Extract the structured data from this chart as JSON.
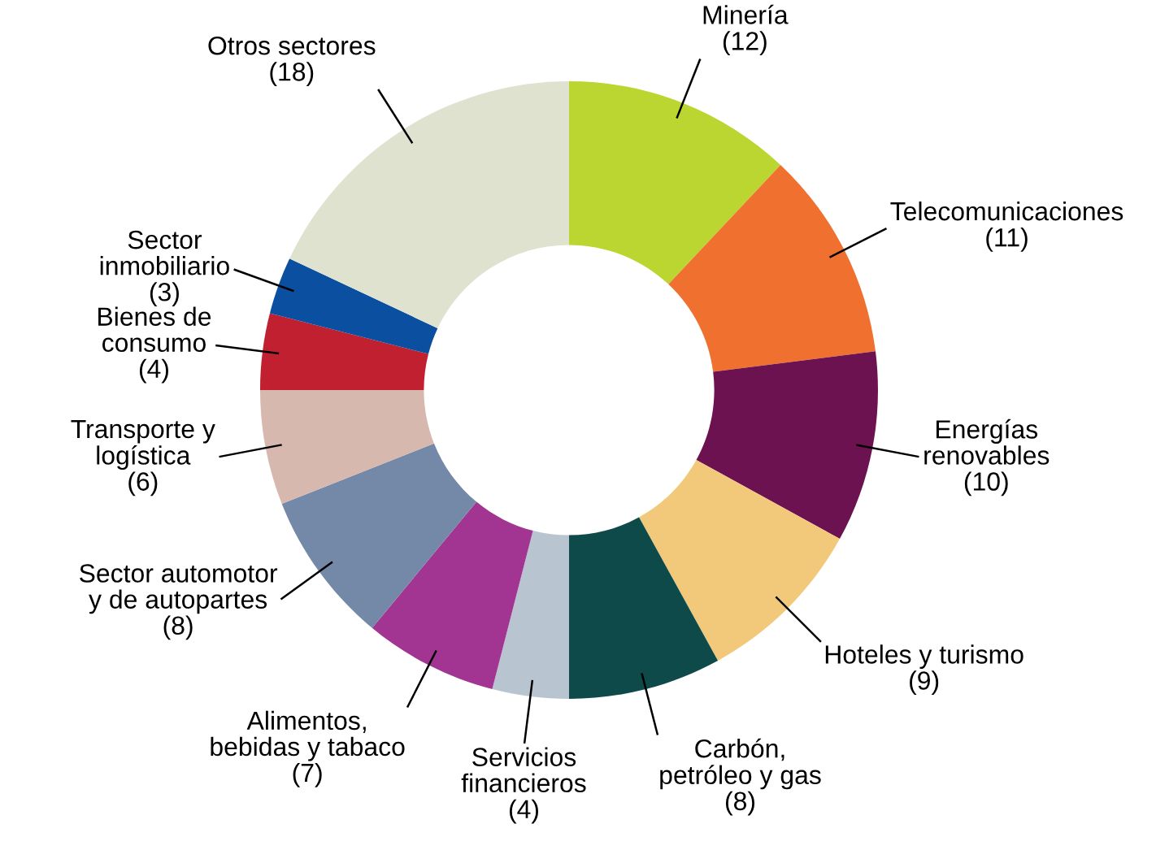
{
  "chart_data": {
    "type": "donut",
    "categories": [
      "Minería",
      "Telecomunicaciones",
      "Energías\nrenovables",
      "Hoteles y turismo",
      "Carbón,\npetróleo y gas",
      "Servicios\nfinancieros",
      "Alimentos,\nbebidas y tabaco",
      "Sector automotor\ny de autopartes",
      "Transporte y\nlogística",
      "Bienes de\nconsumo",
      "Sector\ninmobiliario",
      "Otros sectores"
    ],
    "values": [
      12,
      11,
      10,
      9,
      8,
      4,
      7,
      8,
      6,
      4,
      3,
      18
    ],
    "value_labels": [
      "(12)",
      "(11)",
      "(10)",
      "(9)",
      "(8)",
      "(4)",
      "(7)",
      "(8)",
      "(6)",
      "(4)",
      "(3)",
      "(18)"
    ],
    "colors": [
      "#bcd631",
      "#f07030",
      "#6d1250",
      "#f2c97a",
      "#0e4a4a",
      "#b8c4d0",
      "#a23592",
      "#7489a8",
      "#d6b8ae",
      "#c02030",
      "#0a4fa0",
      "#dfe2cf"
    ]
  }
}
